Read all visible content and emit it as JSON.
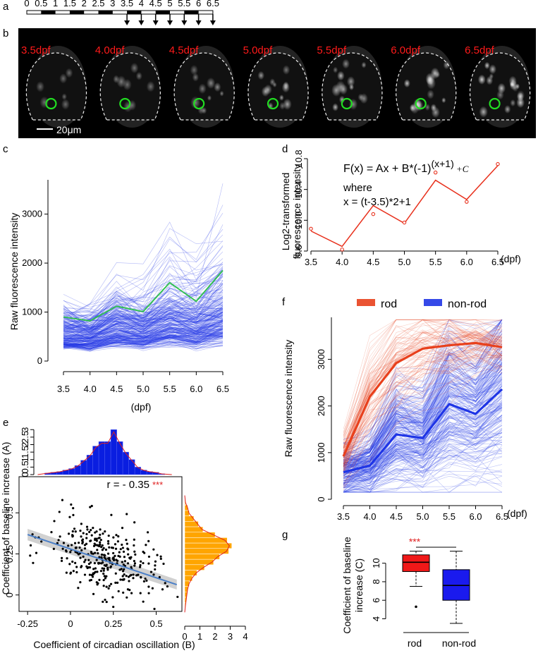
{
  "panel_labels": {
    "a": "a",
    "b": "b",
    "c": "c",
    "d": "d",
    "e": "e",
    "f": "f",
    "g": "g"
  },
  "timeline": {
    "ticks": [
      "0",
      "0.5",
      "1",
      "1.5",
      "2",
      "2.5",
      "3",
      "3.5",
      "4",
      "4.5",
      "5",
      "5.5",
      "6",
      "6.5"
    ],
    "arrows_from": "3.5"
  },
  "images": {
    "labels": [
      "3.5dpf",
      "4.0dpf",
      "4.5dpf",
      "5.0dpf",
      "5.5dpf",
      "6.0dpf",
      "6.5dpf"
    ],
    "scalebar": "20μm",
    "label_color": "#ff2020",
    "circle_color": "#22dd22"
  },
  "colors": {
    "rod": "#e8401c",
    "nonrod": "#1f35e6",
    "highlight": "#2ec24a",
    "fit": "#e8301c",
    "scatter_fit": "#4a7fc8",
    "hist_top": "#0a1ee0",
    "hist_right": "#ffa500",
    "sig": "#e02020"
  },
  "chart_data": [
    {
      "id": "c",
      "type": "line",
      "x": [
        3.5,
        4.0,
        4.5,
        5.0,
        5.5,
        6.0,
        6.5
      ],
      "x_ticks": [
        "3.5",
        "4.0",
        "4.5",
        "5.0",
        "5.5",
        "6.0",
        "6.5"
      ],
      "xlabel": "(dpf)",
      "ylabel": "Raw  fluorescence intensity",
      "y_ticks": [
        0,
        1000,
        2000,
        3000
      ],
      "ylim": [
        0,
        3700
      ],
      "highlight_series": [
        900,
        820,
        1120,
        1010,
        1600,
        1220,
        1850
      ],
      "note": "several hundred individual cell traces (blue), one highlighted cell (green)"
    },
    {
      "id": "d",
      "type": "line",
      "x": [
        3.5,
        4.0,
        4.5,
        5.0,
        5.5,
        6.0,
        6.5
      ],
      "x_ticks": [
        "3.5",
        "4.0",
        "4.5",
        "5.0",
        "5.5",
        "6.0",
        "6.5"
      ],
      "xunit": "(dpf)",
      "ylabel_line1": "Log2-transformed",
      "ylabel_line2": "fluorescence intensity",
      "y_ticks": [
        9.6,
        10.0,
        10.4,
        10.8
      ],
      "ylim": [
        9.6,
        10.8
      ],
      "observed": [
        9.89,
        9.62,
        10.08,
        9.97,
        10.62,
        10.24,
        10.73
      ],
      "fitted": [
        9.86,
        9.66,
        10.19,
        9.96,
        10.52,
        10.27,
        10.71
      ],
      "formula_main": "F(x) = Ax + B*(-1)",
      "formula_exp": "(x+1)",
      "formula_tail": " +C",
      "where": "where",
      "x_def": "x = (t-3.5)*2+1"
    },
    {
      "id": "e",
      "type": "scatter",
      "xlabel": "Coefficient of circadian oscillation (B)",
      "ylabel": "Coefficient of baseline increase (A)",
      "x_ticks": [
        "-0.25",
        "0",
        "0.25",
        "0.5"
      ],
      "y_ticks": [
        "0",
        "0.25",
        "0.5"
      ],
      "xlim": [
        -0.3,
        0.65
      ],
      "ylim": [
        -0.1,
        0.72
      ],
      "annotation": "r = - 0.35",
      "significance": "***",
      "fit_line": {
        "slope": -0.35,
        "intercept": 0.28
      },
      "top_hist_ticks": [
        "0",
        "0.5",
        "1",
        "1.5",
        "2",
        "2.5",
        "3"
      ],
      "right_hist_ticks": [
        "0",
        "1",
        "2",
        "3",
        "4"
      ],
      "top_hist_bins": [
        0.1,
        0.15,
        0.2,
        0.3,
        0.4,
        0.6,
        0.95,
        1.3,
        1.9,
        2.2,
        2.2,
        3.0,
        2.2,
        1.5,
        1.0,
        0.5,
        0.3,
        0.2,
        0.15,
        0.05
      ],
      "right_hist_bins": [
        0.05,
        0.2,
        0.3,
        0.6,
        0.9,
        1.2,
        2.0,
        2.8,
        3.1,
        2.9,
        2.3,
        1.9,
        1.3,
        0.8,
        0.5,
        0.3,
        0.2,
        0.15,
        0.1,
        0.05
      ]
    },
    {
      "id": "f",
      "type": "line",
      "x": [
        3.5,
        4.0,
        4.5,
        5.0,
        5.5,
        6.0,
        6.5
      ],
      "x_ticks": [
        "3.5",
        "4.0",
        "4.5",
        "5.0",
        "5.5",
        "6.0",
        "6.5"
      ],
      "xunit": "(dpf)",
      "ylabel": "Raw  fluorescence intensity",
      "y_ticks": [
        0,
        1000,
        2000,
        3000
      ],
      "ylim": [
        0,
        3900
      ],
      "legend": [
        "rod",
        "non-rod"
      ],
      "series": [
        {
          "name": "rod",
          "values": [
            920,
            2200,
            2920,
            3230,
            3300,
            3350,
            3260
          ]
        },
        {
          "name": "non-rod",
          "values": [
            580,
            720,
            1390,
            1310,
            2040,
            1830,
            2360
          ]
        }
      ]
    },
    {
      "id": "g",
      "type": "box",
      "categories": [
        "rod",
        "non-rod"
      ],
      "ylabel_line1": "Coefficient of baseline",
      "ylabel_line2": "increase (C)",
      "y_ticks": [
        4,
        6,
        8,
        10
      ],
      "ylim": [
        3.2,
        11.8
      ],
      "boxes": [
        {
          "name": "rod",
          "min": 7.5,
          "q1": 9.1,
          "median": 10.1,
          "q3": 10.9,
          "max": 11.3,
          "outliers": [
            5.3
          ]
        },
        {
          "name": "non-rod",
          "min": 3.5,
          "q1": 6.0,
          "median": 7.6,
          "q3": 9.3,
          "max": 11.3,
          "outliers": []
        }
      ],
      "significance": "***"
    }
  ]
}
